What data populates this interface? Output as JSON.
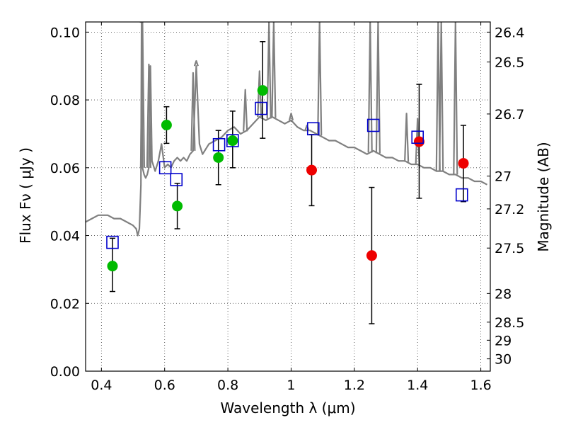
{
  "chart_data": {
    "type": "scatter",
    "xlabel": "Wavelength  λ (μm)",
    "ylabel": "Flux  Fν  ( μJy )",
    "ylabel_right": "Magnitude (AB)",
    "xlim": [
      0.35,
      1.63
    ],
    "ylim": [
      0.0,
      0.103
    ],
    "x_ticks": [
      0.4,
      0.6,
      0.8,
      1.0,
      1.2,
      1.4,
      1.6
    ],
    "x_tick_labels": [
      "0.4",
      "0.6",
      "0.8",
      "1",
      "1.2",
      "1.4",
      "1.6"
    ],
    "y_ticks": [
      0.0,
      0.02,
      0.04,
      0.06,
      0.08,
      0.1
    ],
    "y_tick_labels": [
      "0.00",
      "0.02",
      "0.04",
      "0.06",
      "0.08",
      "0.10"
    ],
    "right_axis_magnitudes": [
      "26.4",
      "26.5",
      "26.7",
      "27",
      "27.2",
      "27.5",
      "28",
      "28.5",
      "29",
      "30"
    ],
    "grid": true,
    "colors": {
      "model": "#808080",
      "model_points": "#0000cc",
      "green_points": "#00bb00",
      "red_points": "#ee0000",
      "errorbars": "#000000"
    },
    "series": [
      {
        "marker": "line",
        "x": [
          0.35,
          0.37,
          0.39,
          0.4,
          0.42,
          0.44,
          0.46,
          0.48,
          0.5,
          0.51,
          0.515,
          0.52,
          0.525,
          0.527,
          0.53,
          0.535,
          0.54,
          0.545,
          0.55,
          0.555,
          0.56,
          0.57,
          0.58,
          0.59,
          0.6,
          0.61,
          0.62,
          0.63,
          0.64,
          0.65,
          0.66,
          0.67,
          0.68,
          0.69,
          0.7,
          0.71,
          0.72,
          0.74,
          0.76,
          0.78,
          0.8,
          0.82,
          0.84,
          0.86,
          0.88,
          0.9,
          0.92,
          0.94,
          0.96,
          0.98,
          1.0,
          1.02,
          1.04,
          1.06,
          1.08,
          1.1,
          1.12,
          1.14,
          1.16,
          1.18,
          1.2,
          1.22,
          1.24,
          1.26,
          1.28,
          1.3,
          1.32,
          1.34,
          1.36,
          1.38,
          1.4,
          1.42,
          1.44,
          1.46,
          1.48,
          1.5,
          1.52,
          1.54,
          1.56,
          1.58,
          1.6,
          1.62
        ],
        "y": [
          0.044,
          0.045,
          0.046,
          0.046,
          0.046,
          0.045,
          0.045,
          0.044,
          0.043,
          0.042,
          0.04,
          0.042,
          0.055,
          0.103,
          0.06,
          0.058,
          0.057,
          0.058,
          0.06,
          0.09,
          0.062,
          0.059,
          0.062,
          0.067,
          0.06,
          0.061,
          0.06,
          0.062,
          0.063,
          0.062,
          0.063,
          0.062,
          0.064,
          0.065,
          0.09,
          0.067,
          0.064,
          0.067,
          0.068,
          0.069,
          0.071,
          0.072,
          0.07,
          0.071,
          0.073,
          0.075,
          0.074,
          0.075,
          0.074,
          0.073,
          0.074,
          0.072,
          0.071,
          0.071,
          0.07,
          0.069,
          0.068,
          0.068,
          0.067,
          0.066,
          0.066,
          0.065,
          0.064,
          0.065,
          0.064,
          0.063,
          0.063,
          0.062,
          0.062,
          0.061,
          0.061,
          0.06,
          0.06,
          0.059,
          0.059,
          0.058,
          0.058,
          0.057,
          0.057,
          0.056,
          0.056,
          0.055
        ]
      },
      {
        "marker": "open-square",
        "x": [
          0.435,
          0.602,
          0.637,
          0.772,
          0.815,
          0.905,
          1.07,
          1.26,
          1.4,
          1.54
        ],
        "y": [
          0.038,
          0.06,
          0.0565,
          0.0668,
          0.068,
          0.0775,
          0.0715,
          0.0725,
          0.069,
          0.052
        ]
      },
      {
        "marker": "filled-circle-green",
        "x": [
          0.435,
          0.606,
          0.64,
          0.77,
          0.815,
          0.91
        ],
        "y": [
          0.031,
          0.0726,
          0.0487,
          0.063,
          0.068,
          0.0828
        ],
        "yerr_low": [
          0.0235,
          0.0672,
          0.042,
          0.055,
          0.06,
          0.0687
        ],
        "yerr_high": [
          0.0392,
          0.078,
          0.0554,
          0.071,
          0.0767,
          0.0972
        ]
      },
      {
        "marker": "filled-circle-red",
        "x": [
          1.065,
          1.255,
          1.405,
          1.545
        ],
        "y": [
          0.0593,
          0.0341,
          0.0677,
          0.0613
        ],
        "yerr_low": [
          0.0488,
          0.014,
          0.051,
          0.05
        ],
        "yerr_high": [
          0.0698,
          0.0542,
          0.0846,
          0.0725
        ]
      }
    ],
    "emission_spikes": [
      {
        "x": 0.527,
        "y": 0.103
      },
      {
        "x": 0.53,
        "y": 0.103
      },
      {
        "x": 0.55,
        "y": 0.0905
      },
      {
        "x": 0.69,
        "y": 0.088
      },
      {
        "x": 0.7,
        "y": 0.0915
      },
      {
        "x": 0.855,
        "y": 0.083
      },
      {
        "x": 0.9,
        "y": 0.0885
      },
      {
        "x": 0.93,
        "y": 0.103
      },
      {
        "x": 0.945,
        "y": 0.103
      },
      {
        "x": 1.0,
        "y": 0.076
      },
      {
        "x": 1.05,
        "y": 0.0725
      },
      {
        "x": 1.09,
        "y": 0.103
      },
      {
        "x": 1.25,
        "y": 0.103
      },
      {
        "x": 1.275,
        "y": 0.103
      },
      {
        "x": 1.365,
        "y": 0.076
      },
      {
        "x": 1.4,
        "y": 0.0745
      },
      {
        "x": 1.465,
        "y": 0.103
      },
      {
        "x": 1.475,
        "y": 0.103
      },
      {
        "x": 1.52,
        "y": 0.103
      }
    ]
  }
}
